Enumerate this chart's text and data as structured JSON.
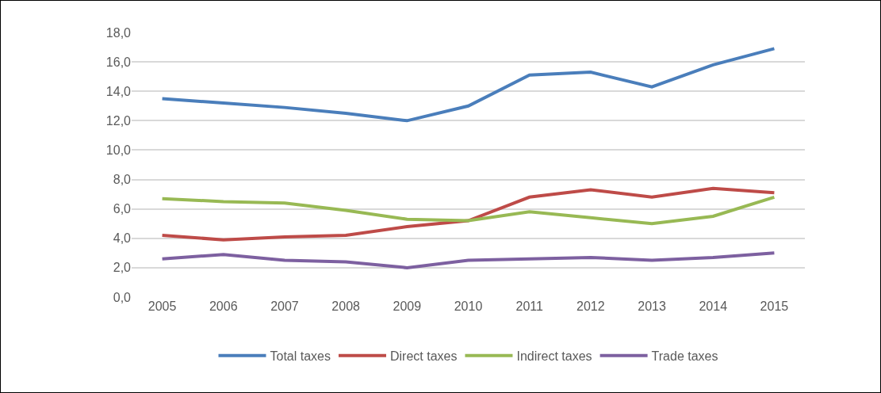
{
  "chart_data": {
    "type": "line",
    "categories": [
      "2005",
      "2006",
      "2007",
      "2008",
      "2009",
      "2010",
      "2011",
      "2012",
      "2013",
      "2014",
      "2015"
    ],
    "series": [
      {
        "name": "Total taxes",
        "color": "#4a7ebb",
        "values": [
          13.5,
          13.2,
          12.9,
          12.5,
          12.0,
          13.0,
          15.1,
          15.3,
          14.3,
          15.8,
          16.9
        ]
      },
      {
        "name": "Direct taxes",
        "color": "#be4b48",
        "values": [
          4.2,
          3.9,
          4.1,
          4.2,
          4.8,
          5.2,
          6.8,
          7.3,
          6.8,
          7.4,
          7.1
        ]
      },
      {
        "name": "Indirect taxes",
        "color": "#98b954",
        "values": [
          6.7,
          6.5,
          6.4,
          5.9,
          5.3,
          5.2,
          5.8,
          5.4,
          5.0,
          5.5,
          6.8
        ]
      },
      {
        "name": "Trade taxes",
        "color": "#7d60a0",
        "values": [
          2.6,
          2.9,
          2.5,
          2.4,
          2.0,
          2.5,
          2.6,
          2.7,
          2.5,
          2.7,
          3.0
        ]
      }
    ],
    "ylim": [
      0,
      18
    ],
    "yticks": [
      {
        "value": 0,
        "label": "0,0"
      },
      {
        "value": 2,
        "label": "2,0"
      },
      {
        "value": 4,
        "label": "4,0"
      },
      {
        "value": 6,
        "label": "6,0"
      },
      {
        "value": 8,
        "label": "8,0"
      },
      {
        "value": 10,
        "label": "10,0"
      },
      {
        "value": 12,
        "label": "12,0"
      },
      {
        "value": 14,
        "label": "14,0"
      },
      {
        "value": 16,
        "label": "16,0"
      },
      {
        "value": 18,
        "label": "18,0"
      }
    ],
    "grid": "y",
    "legend": "bottom",
    "marker": "none",
    "line_style": "solid"
  }
}
